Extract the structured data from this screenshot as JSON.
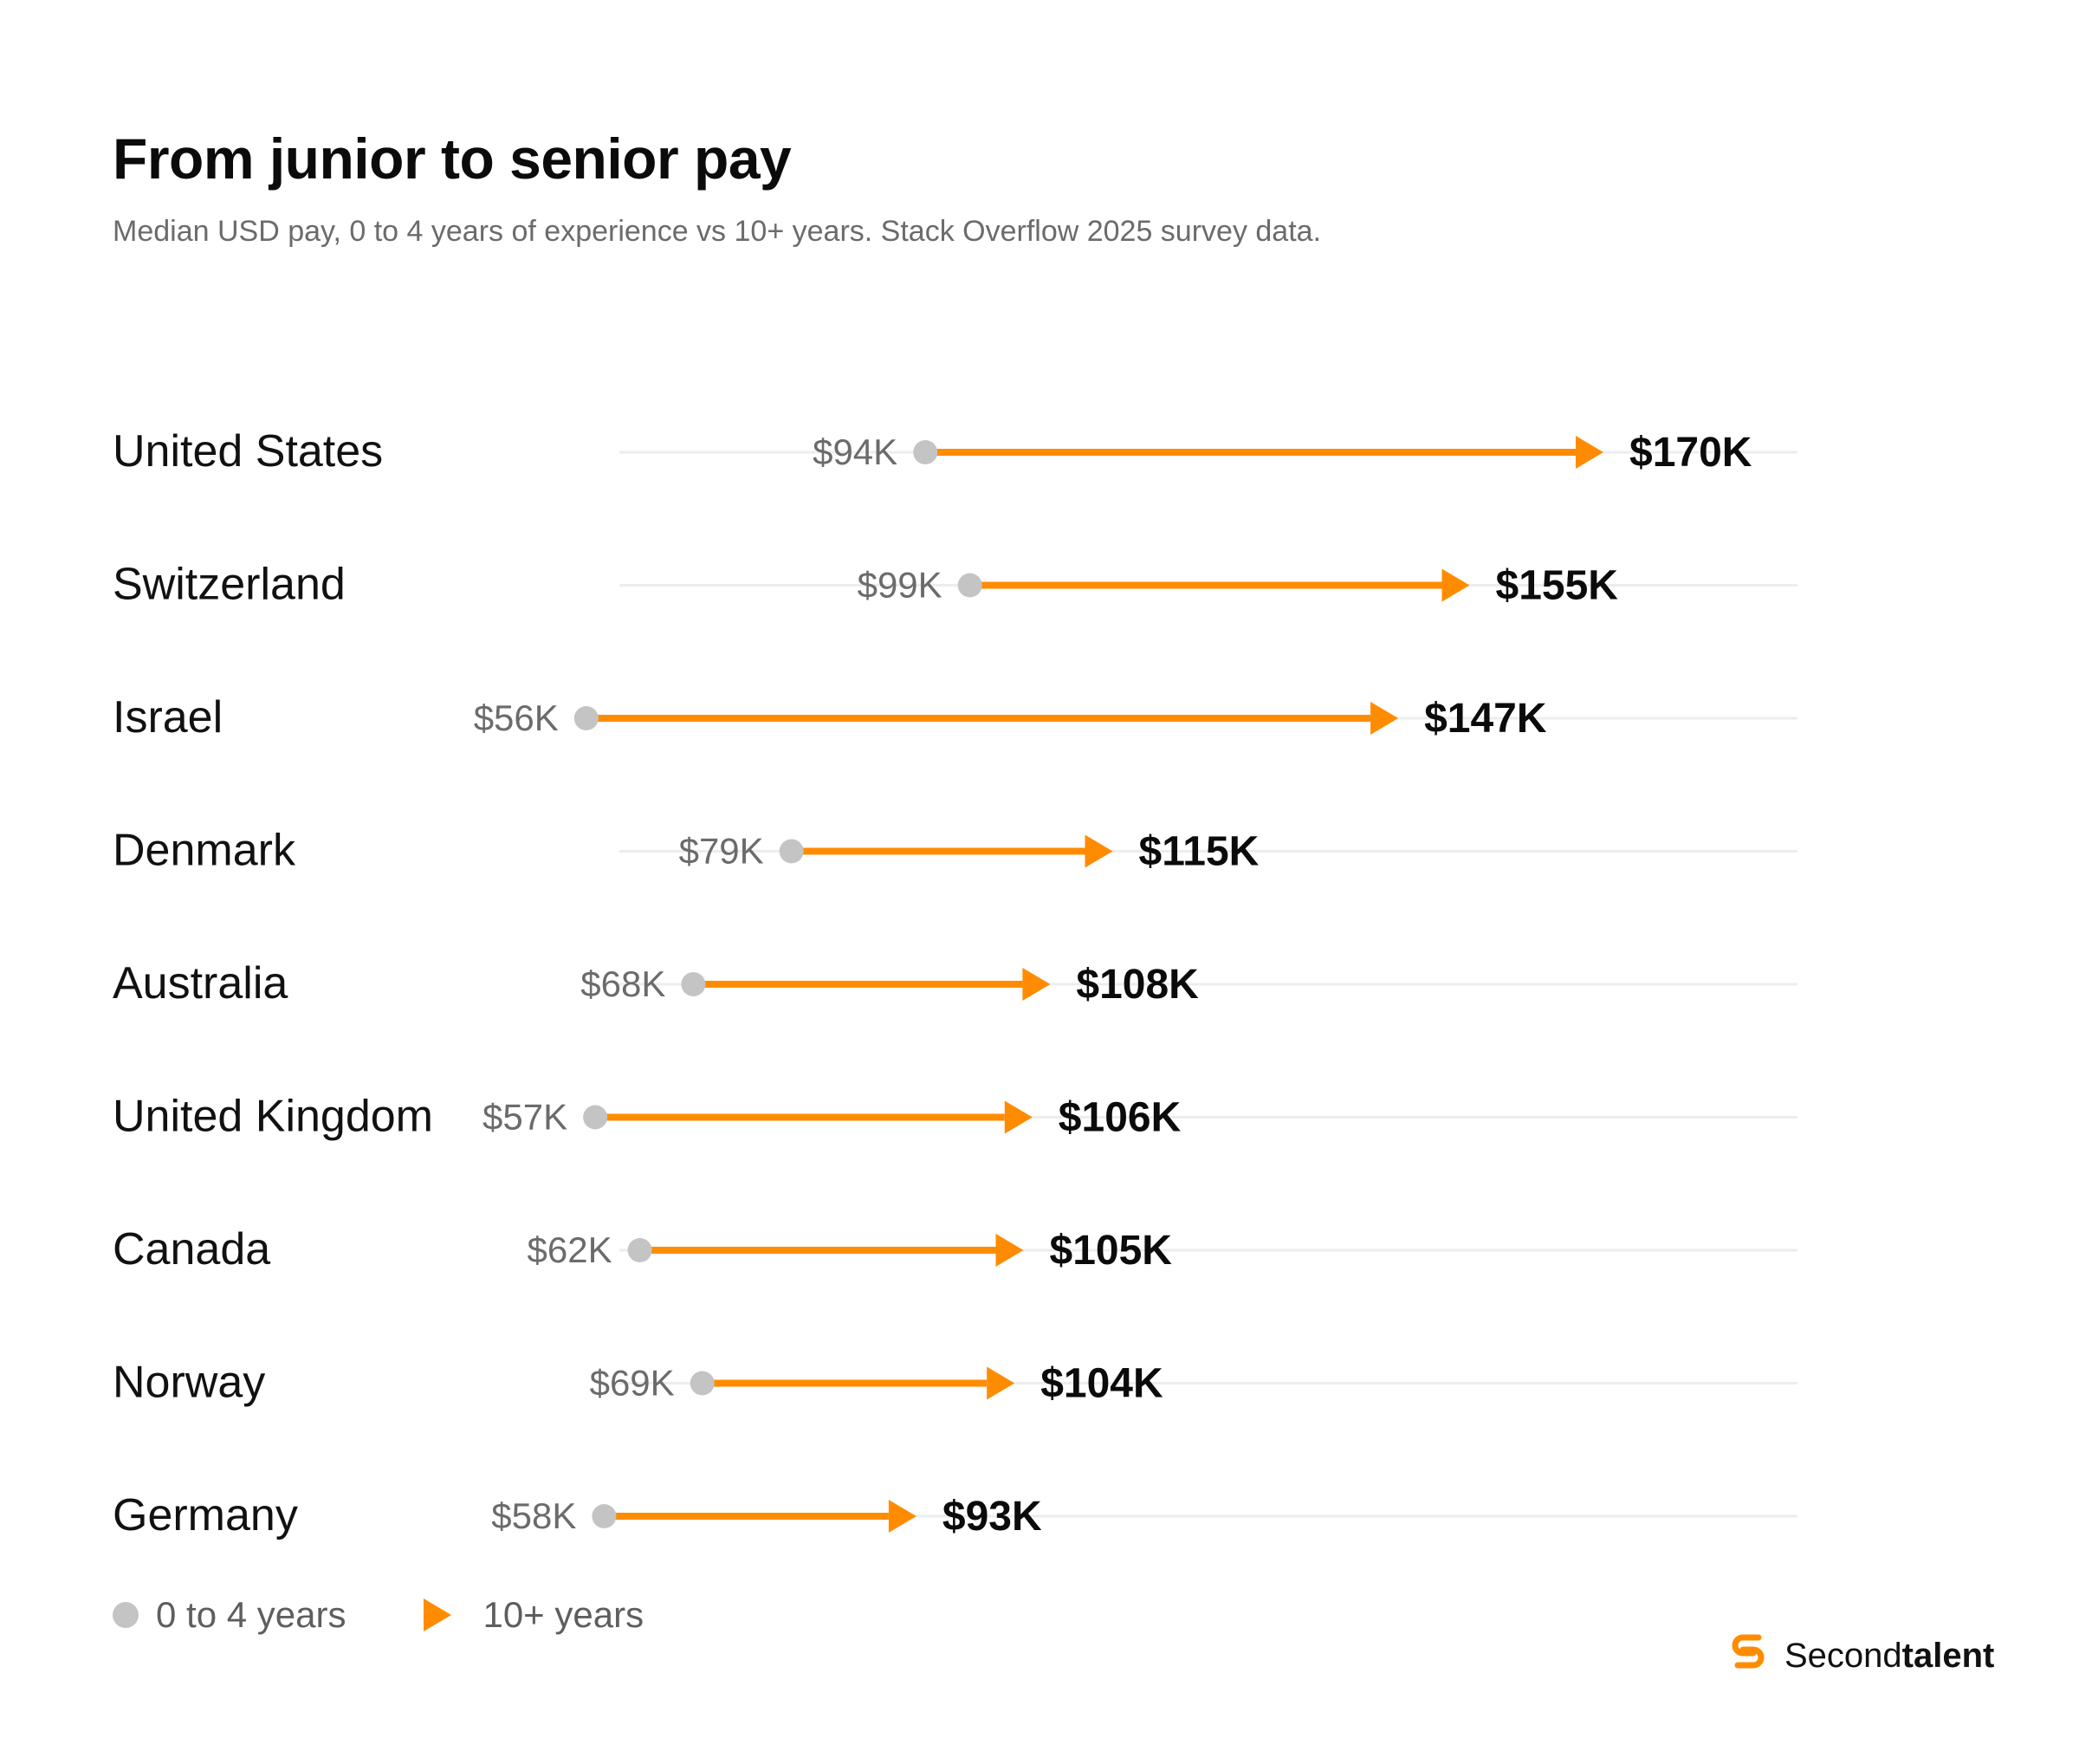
{
  "title": "From junior to senior pay",
  "subtitle": "Median USD pay, 0 to 4 years of experience vs 10+ years. Stack Overflow 2025 survey data.",
  "colors": {
    "junior": "#c4c4c4",
    "senior": "#ff8c00",
    "gridline": "#ededed",
    "junior_label": "#6b6b6b",
    "senior_label": "#0b0b0b",
    "country_label": "#111111"
  },
  "legend": {
    "junior_label": "0 to 4 years",
    "senior_label": "10+ years"
  },
  "brand": {
    "name_regular": "Second",
    "name_bold": "talent",
    "icon": "secondtalent-logo-icon"
  },
  "chart_data": {
    "type": "dumbbell",
    "xlim": [
      0,
      170
    ],
    "units": "USD thousands",
    "categories": [
      "United States",
      "Switzerland",
      "Israel",
      "Denmark",
      "Australia",
      "United Kingdom",
      "Canada",
      "Norway",
      "Germany"
    ],
    "series": [
      {
        "name": "0 to 4 years",
        "values": [
          94,
          99,
          56,
          79,
          68,
          57,
          62,
          69,
          58
        ],
        "labels": [
          "$94K",
          "$99K",
          "$56K",
          "$79K",
          "$68K",
          "$57K",
          "$62K",
          "$69K",
          "$58K"
        ]
      },
      {
        "name": "10+ years",
        "values": [
          170,
          155,
          147,
          115,
          108,
          106,
          105,
          104,
          93
        ],
        "labels": [
          "$170K",
          "$155K",
          "$147K",
          "$115K",
          "$108K",
          "$106K",
          "$105K",
          "$104K",
          "$93K"
        ]
      }
    ],
    "grid": true,
    "legend_position": "bottom-left"
  }
}
